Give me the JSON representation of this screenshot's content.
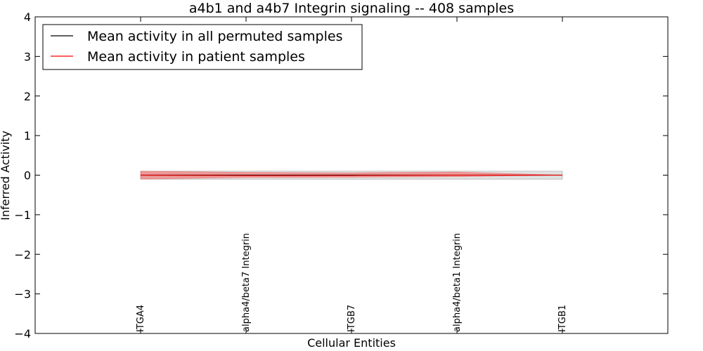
{
  "chart_data": {
    "type": "line",
    "title": "a4b1 and a4b7 Integrin signaling -- 408 samples",
    "xlabel": "Cellular Entities",
    "ylabel": "Inferred Activity",
    "ylim": [
      -4,
      4
    ],
    "yticks": [
      {
        "value": 4,
        "label": "4"
      },
      {
        "value": 3,
        "label": "3"
      },
      {
        "value": 2,
        "label": "2"
      },
      {
        "value": 1,
        "label": "1"
      },
      {
        "value": 0,
        "label": "0"
      },
      {
        "value": -1,
        "label": "−1"
      },
      {
        "value": -2,
        "label": "−2"
      },
      {
        "value": -3,
        "label": "−3"
      },
      {
        "value": -4,
        "label": "−4"
      }
    ],
    "categories": [
      "ITGA4",
      "alpha4/beta7 Integrin",
      "ITGB7",
      "alpha4/beta1 Integrin",
      "ITGB1"
    ],
    "legend_position": "top-left",
    "series": [
      {
        "name": "Mean activity in all permuted samples",
        "color": "#000000",
        "band_color": "#c8c8c8",
        "values": [
          0.0,
          0.0,
          0.0,
          0.0,
          0.0
        ],
        "lower": [
          -0.1,
          -0.1,
          -0.1,
          -0.1,
          -0.1
        ],
        "upper": [
          0.1,
          0.1,
          0.1,
          0.1,
          0.1
        ]
      },
      {
        "name": "Mean activity in patient samples",
        "color": "#ff0000",
        "band_color": "#f08080",
        "values": [
          0.0,
          -0.01,
          -0.01,
          0.0,
          0.0
        ],
        "lower": [
          -0.1,
          -0.06,
          -0.05,
          -0.04,
          0.0
        ],
        "upper": [
          0.1,
          0.07,
          0.06,
          0.08,
          0.0
        ]
      }
    ]
  }
}
